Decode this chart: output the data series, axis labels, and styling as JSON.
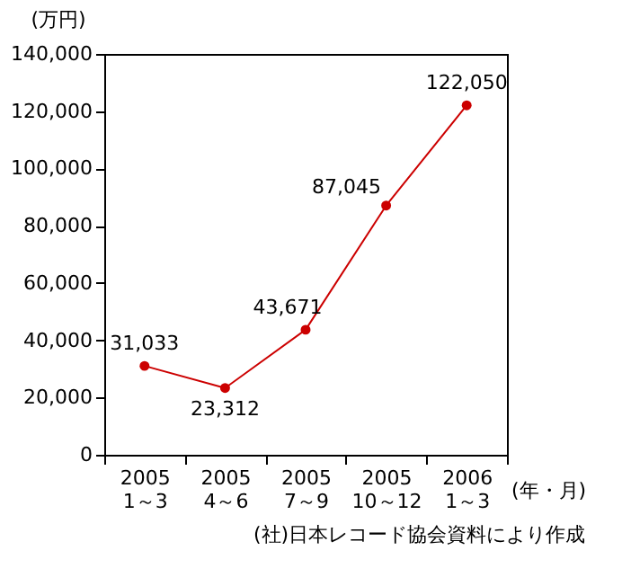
{
  "chart_data": {
    "type": "line",
    "ylabel": "(万円)",
    "xlabel": "(年・月)",
    "categories": [
      "2005\n1～3",
      "2005\n4～6",
      "2005\n7～9",
      "2005\n10～12",
      "2006\n1～3"
    ],
    "series": [
      {
        "color": "#cc0000",
        "values": [
          31033,
          23312,
          43671,
          87045,
          122050
        ],
        "value_labels": [
          "31,033",
          "23,312",
          "43,671",
          "87,045",
          "122,050"
        ]
      }
    ],
    "ylim": [
      0,
      140000
    ],
    "yticks": [
      0,
      {
        "value": 20000,
        "label": "20,000"
      },
      {
        "value": 40000,
        "label": "40,000"
      },
      {
        "value": 60000,
        "label": "60,000"
      },
      {
        "value": 80000,
        "label": "80,000"
      },
      {
        "value": 100000,
        "label": "100,000"
      },
      {
        "value": 120000,
        "label": "120,000"
      },
      {
        "value": 140000,
        "label": "140,000"
      }
    ],
    "marker": "circle",
    "annotations": [
      "(社)日本レコード協会資料により作成"
    ]
  }
}
